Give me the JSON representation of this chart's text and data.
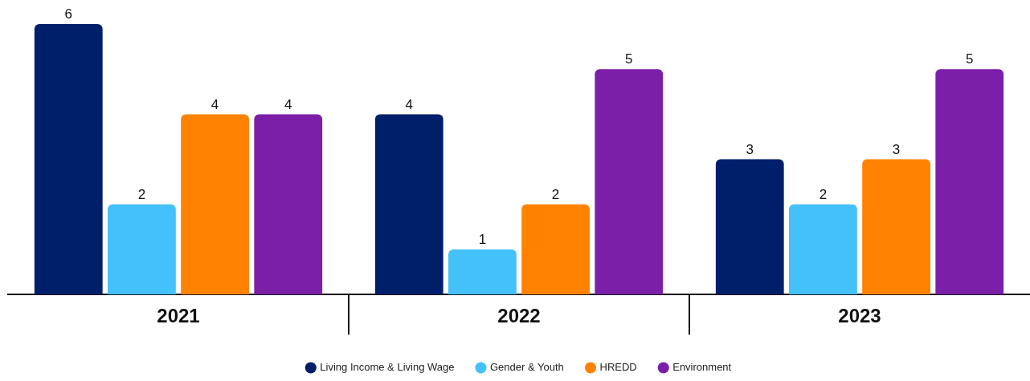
{
  "chart_data": {
    "type": "bar",
    "categories": [
      "2021",
      "2022",
      "2023"
    ],
    "series": [
      {
        "name": "Living Income & Living Wage",
        "color": "#001f6b",
        "values": [
          6,
          4,
          3
        ]
      },
      {
        "name": "Gender & Youth",
        "color": "#45c1f9",
        "values": [
          2,
          1,
          2
        ]
      },
      {
        "name": "HREDD",
        "color": "#ff8200",
        "values": [
          4,
          2,
          3
        ]
      },
      {
        "name": "Environment",
        "color": "#7b1fa9",
        "values": [
          4,
          5,
          5
        ]
      }
    ],
    "data_labels": true,
    "legend": "bottom"
  }
}
